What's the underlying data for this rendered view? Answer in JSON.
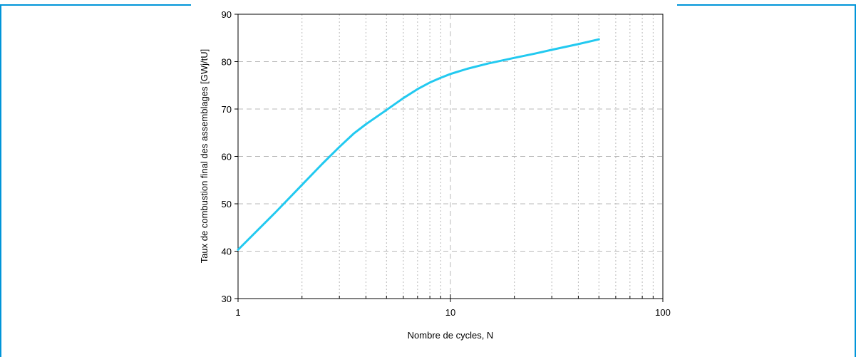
{
  "colors": {
    "frame": "#0095d9",
    "series": "#22c9f0",
    "grid": "#b8b8b8"
  },
  "chart_data": {
    "type": "line",
    "xlabel": "Nombre de cycles, N",
    "ylabel": "Taux de combustion final des assemblages [GWj/tU]",
    "xscale": "log",
    "xlim": [
      1,
      100
    ],
    "ylim": [
      30,
      90
    ],
    "grid": true,
    "x_ticks": [
      "1",
      "10",
      "100"
    ],
    "y_ticks": [
      "30",
      "40",
      "50",
      "60",
      "70",
      "80",
      "90"
    ],
    "series": [
      {
        "x": [
          1,
          1.5,
          2,
          2.5,
          3,
          3.5,
          4,
          5,
          6,
          7,
          8,
          9,
          10,
          12,
          15,
          20,
          25,
          30,
          40,
          50
        ],
        "y": [
          40.3,
          48.2,
          54.0,
          58.5,
          62.0,
          64.8,
          66.8,
          69.8,
          72.3,
          74.2,
          75.6,
          76.6,
          77.4,
          78.5,
          79.6,
          80.8,
          81.7,
          82.5,
          83.7,
          84.7
        ]
      }
    ]
  }
}
